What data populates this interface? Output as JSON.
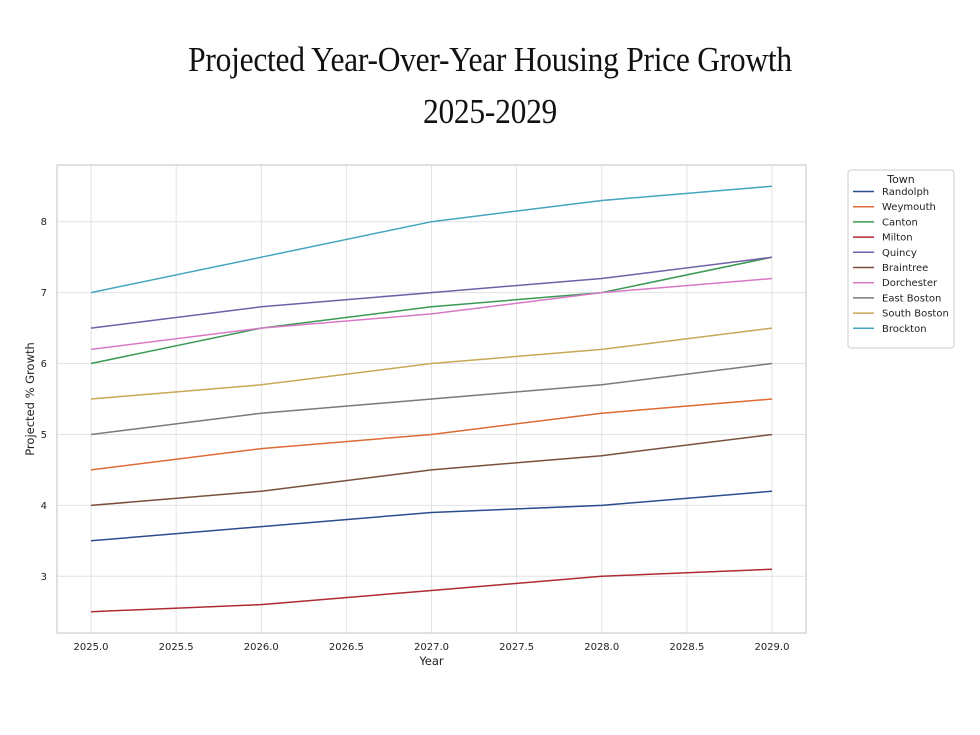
{
  "chart_data": {
    "type": "line",
    "title": "Projected Year-Over-Year Housing Price Growth",
    "subtitle": "2025-2029",
    "xlabel": "Year",
    "ylabel": "Projected % Growth",
    "x": [
      2025,
      2026,
      2027,
      2028,
      2029
    ],
    "xticks": [
      "2025.0",
      "2025.5",
      "2026.0",
      "2026.5",
      "2027.0",
      "2027.5",
      "2028.0",
      "2028.5",
      "2029.0"
    ],
    "yticks": [
      "3",
      "4",
      "5",
      "6",
      "7",
      "8"
    ],
    "xlim": [
      2024.8,
      2029.2
    ],
    "ylim": [
      2.2,
      8.8
    ],
    "grid": true,
    "legend_title": "Town",
    "legend_position": "outside-top-right",
    "series": [
      {
        "name": "Randolph",
        "color": "#2a4d8f",
        "values": [
          3.5,
          3.7,
          3.9,
          4.0,
          4.2
        ]
      },
      {
        "name": "Weymouth",
        "color": "#dd6b33",
        "values": [
          4.5,
          4.8,
          5.0,
          5.3,
          5.5
        ]
      },
      {
        "name": "Canton",
        "color": "#3a9a55",
        "values": [
          6.0,
          6.5,
          6.8,
          7.0,
          7.5
        ]
      },
      {
        "name": "Milton",
        "color": "#b02a35",
        "values": [
          2.5,
          2.6,
          2.8,
          3.0,
          3.1
        ]
      },
      {
        "name": "Quincy",
        "color": "#7060a8",
        "values": [
          6.5,
          6.8,
          7.0,
          7.2,
          7.5
        ]
      },
      {
        "name": "Braintree",
        "color": "#7b4f3e",
        "values": [
          4.0,
          4.2,
          4.5,
          4.7,
          5.0
        ]
      },
      {
        "name": "Dorchester",
        "color": "#d879c7",
        "values": [
          6.2,
          6.5,
          6.7,
          7.0,
          7.2
        ]
      },
      {
        "name": "East Boston",
        "color": "#7a7a7a",
        "values": [
          5.0,
          5.3,
          5.5,
          5.7,
          6.0
        ]
      },
      {
        "name": "South Boston",
        "color": "#c8a855",
        "values": [
          5.5,
          5.7,
          6.0,
          6.2,
          6.5
        ]
      },
      {
        "name": "Brockton",
        "color": "#45a5bd",
        "values": [
          7.0,
          7.5,
          8.0,
          8.3,
          8.5
        ]
      }
    ]
  }
}
